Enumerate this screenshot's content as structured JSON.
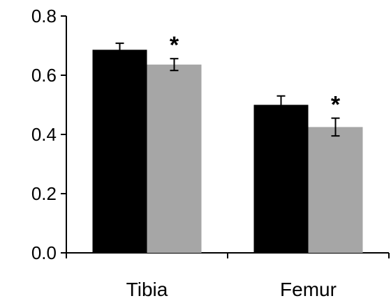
{
  "chart_data": {
    "type": "bar",
    "categories": [
      "Tibia",
      "Femur"
    ],
    "series": [
      {
        "color": "#000000",
        "values": [
          0.686,
          0.5
        ],
        "errors": [
          0.022,
          0.03
        ]
      },
      {
        "color": "#a6a6a6",
        "values": [
          0.636,
          0.425
        ],
        "errors": [
          0.02,
          0.03
        ]
      }
    ],
    "annotations": [
      {
        "category": "Tibia",
        "series_index": 1,
        "text": "*"
      },
      {
        "category": "Femur",
        "series_index": 1,
        "text": "*"
      }
    ],
    "yticks": [
      "0.0",
      "0.2",
      "0.4",
      "0.6",
      "0.8"
    ],
    "ylim": [
      0,
      0.8
    ],
    "title": "",
    "xlabel": "",
    "ylabel": "",
    "grid": false,
    "legend": "none"
  }
}
